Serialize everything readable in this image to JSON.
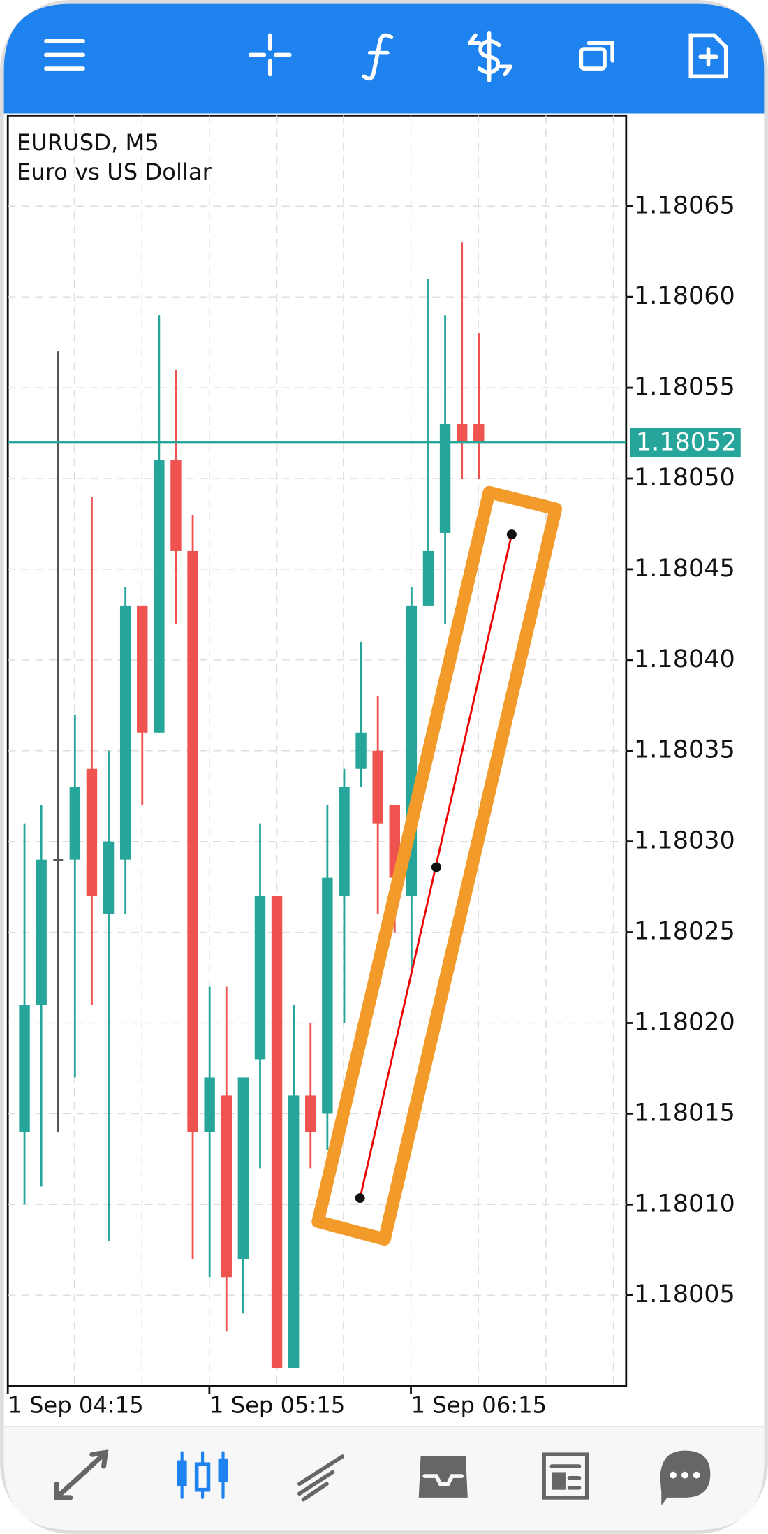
{
  "chart": {
    "type": "candlestick",
    "symbol": "EURUSD, M5",
    "description": "Euro vs US Dollar",
    "ylim": [
      1.18,
      1.1807
    ],
    "yticks": [
      1.18065,
      {
        "value": 1.1806,
        "label": "1.18060"
      },
      1.18055,
      {
        "value": 1.1805,
        "label": "1.18050"
      },
      1.18045,
      {
        "value": 1.1804,
        "label": "1.18040"
      },
      1.18035,
      {
        "value": 1.1803,
        "label": "1.18030"
      },
      1.18025,
      {
        "value": 1.1802,
        "label": "1.18020"
      },
      1.18015,
      {
        "value": 1.1801,
        "label": "1.18010"
      },
      1.18005
    ],
    "current_price": 1.18052,
    "up_color": "#26a69a",
    "down_color": "#ef5350",
    "x_labels": [
      "1 Sep 04:15",
      "1 Sep 05:15",
      "1 Sep 06:15"
    ],
    "candles": [
      {
        "open": 1.18014,
        "high": 1.18031,
        "low": 1.1801,
        "close": 1.18021
      },
      {
        "open": 1.18021,
        "high": 1.18032,
        "low": 1.18011,
        "close": 1.18029
      },
      {
        "open": 1.18029,
        "high": 1.18057,
        "low": 1.18014,
        "close": 1.18029
      },
      {
        "open": 1.18029,
        "high": 1.18037,
        "low": 1.18017,
        "close": 1.18033
      },
      {
        "open": 1.18034,
        "high": 1.18049,
        "low": 1.18021,
        "close": 1.18027
      },
      {
        "open": 1.18026,
        "high": 1.18035,
        "low": 1.18008,
        "close": 1.1803
      },
      {
        "open": 1.18029,
        "high": 1.18044,
        "low": 1.18026,
        "close": 1.18043
      },
      {
        "open": 1.18043,
        "high": 1.18043,
        "low": 1.18032,
        "close": 1.18036
      },
      {
        "open": 1.18036,
        "high": 1.18059,
        "low": 1.18036,
        "close": 1.18051
      },
      {
        "open": 1.18051,
        "high": 1.18056,
        "low": 1.18042,
        "close": 1.18046
      },
      {
        "open": 1.18046,
        "high": 1.18048,
        "low": 1.18007,
        "close": 1.18014
      },
      {
        "open": 1.18014,
        "high": 1.18022,
        "low": 1.18006,
        "close": 1.18017
      },
      {
        "open": 1.18016,
        "high": 1.18022,
        "low": 1.18003,
        "close": 1.18006
      },
      {
        "open": 1.18007,
        "high": 1.18017,
        "low": 1.18004,
        "close": 1.18017
      },
      {
        "open": 1.18018,
        "high": 1.18031,
        "low": 1.18012,
        "close": 1.18027
      },
      {
        "open": 1.18027,
        "high": 1.18027,
        "low": 1.18001,
        "close": 1.18001
      },
      {
        "open": 1.18001,
        "high": 1.18021,
        "low": 1.18001,
        "close": 1.18016
      },
      {
        "open": 1.18016,
        "high": 1.1802,
        "low": 1.18012,
        "close": 1.18014
      },
      {
        "open": 1.18015,
        "high": 1.18032,
        "low": 1.18013,
        "close": 1.18028
      },
      {
        "open": 1.18027,
        "high": 1.18034,
        "low": 1.1802,
        "close": 1.18033
      },
      {
        "open": 1.18034,
        "high": 1.18041,
        "low": 1.18033,
        "close": 1.18036
      },
      {
        "open": 1.18035,
        "high": 1.18038,
        "low": 1.18026,
        "close": 1.18031
      },
      {
        "open": 1.18032,
        "high": 1.18032,
        "low": 1.18025,
        "close": 1.18028
      },
      {
        "open": 1.18027,
        "high": 1.18044,
        "low": 1.18023,
        "close": 1.18043
      },
      {
        "open": 1.18043,
        "high": 1.18061,
        "low": 1.18043,
        "close": 1.18046
      },
      {
        "open": 1.18047,
        "high": 1.18059,
        "low": 1.18042,
        "close": 1.18053
      },
      {
        "open": 1.18053,
        "high": 1.18063,
        "low": 1.1805,
        "close": 1.18052
      },
      {
        "open": 1.18053,
        "high": 1.18058,
        "low": 1.1805,
        "close": 1.18052
      }
    ]
  }
}
